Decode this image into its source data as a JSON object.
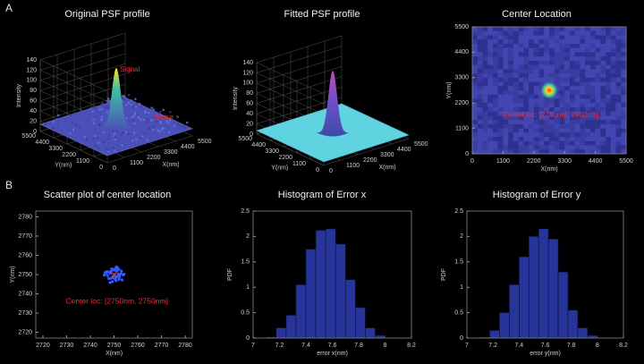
{
  "panel_labels": [
    "A",
    "B"
  ],
  "chart_data": [
    {
      "type": "surface3d",
      "title": "Original PSF profile",
      "xlabel": "X(nm)",
      "ylabel": "Y(nm)",
      "zlabel": "Intensity",
      "xlim": [
        0,
        5500
      ],
      "ylim": [
        0,
        5500
      ],
      "zlim": [
        0,
        140
      ],
      "xticks": [
        0,
        1100,
        2200,
        3300,
        4400,
        5500
      ],
      "yticks": [
        0,
        1100,
        2200,
        3300,
        4400,
        5500
      ],
      "zticks": [
        0,
        20,
        40,
        60,
        80,
        100,
        120,
        140
      ],
      "color": "#4b50b8",
      "annotations": [
        "Signal",
        "Noise"
      ],
      "annotation_color": "#e8303a"
    },
    {
      "type": "surface3d",
      "title": "Fitted PSF profile",
      "xlabel": "X(nm)",
      "ylabel": "Y(nm)",
      "zlabel": "Intensity",
      "xlim": [
        0,
        5500
      ],
      "ylim": [
        0,
        5500
      ],
      "zlim": [
        0,
        140
      ],
      "xticks": [
        0,
        1100,
        2200,
        3300,
        4400,
        5500
      ],
      "yticks": [
        0,
        1100,
        2200,
        3300,
        4400,
        5500
      ],
      "zticks": [
        0,
        20,
        40,
        60,
        80,
        100,
        120,
        140
      ],
      "color": "#5fd3e0"
    },
    {
      "type": "heatmap",
      "title": "Center Location",
      "xlabel": "X(nm)",
      "ylabel": "Y(nm)",
      "xlim": [
        0,
        5500
      ],
      "ylim": [
        0,
        5500
      ],
      "xticks": [
        0,
        1100,
        2200,
        3300,
        4400,
        5500
      ],
      "yticks": [
        0,
        1100,
        2200,
        3300,
        4400,
        5500
      ],
      "center": [
        2750,
        2750
      ],
      "color": "#36389a",
      "annotations": [
        "Center loc: [2750nm, 2750nm]"
      ],
      "annotation_color": "#e8303a"
    },
    {
      "type": "scatter",
      "title": "Scatter plot of center location",
      "xlabel": "X(nm)",
      "ylabel": "Y(nm)",
      "xlim": [
        2717,
        2783
      ],
      "ylim": [
        2717,
        2783
      ],
      "xticks": [
        2720,
        2730,
        2740,
        2750,
        2760,
        2770,
        2780
      ],
      "yticks": [
        2720,
        2730,
        2740,
        2750,
        2760,
        2770,
        2780
      ],
      "x": [
        2748.5,
        2751.2,
        2749.8,
        2752.6,
        2747.3,
        2750.4,
        2753.1,
        2746.9,
        2749.1,
        2751.9,
        2750.9,
        2748.0,
        2752.0,
        2749.5,
        2750.2,
        2747.8,
        2751.5,
        2753.8,
        2746.2,
        2750.7,
        2749.3,
        2752.9,
        2748.7,
        2751.0,
        2750.0,
        2747.1,
        2753.4,
        2749.0,
        2751.7,
        2748.3,
        2750.5,
        2752.3,
        2746.6,
        2749.6,
        2751.3,
        2754.2,
        2745.9,
        2750.8,
        2748.9,
        2752.1
      ],
      "y": [
        2750.6,
        2748.9,
        2752.3,
        2750.1,
        2749.4,
        2747.6,
        2751.8,
        2750.9,
        2753.0,
        2749.2,
        2746.8,
        2751.3,
        2752.7,
        2748.4,
        2750.0,
        2747.9,
        2753.5,
        2749.8,
        2751.1,
        2752.2,
        2746.3,
        2750.5,
        2748.1,
        2754.0,
        2749.6,
        2751.6,
        2747.2,
        2752.9,
        2750.3,
        2745.8,
        2753.2,
        2748.7,
        2750.8,
        2749.0,
        2751.9,
        2750.2,
        2749.7,
        2748.5,
        2752.0,
        2747.5
      ],
      "color": "#2f5bff",
      "center": [
        2750,
        2750
      ],
      "annotations": [
        "Center loc: [2750nm, 2750nm]"
      ],
      "annotation_color": "#e8303a"
    },
    {
      "type": "histogram",
      "title": "Histogram of Error x",
      "xlabel": "error x(nm)",
      "ylabel": "PDF",
      "xlim": [
        7,
        8.2
      ],
      "ylim": [
        0,
        2.5
      ],
      "xticks": [
        7,
        7.2,
        7.4,
        7.6,
        7.8,
        8,
        8.2
      ],
      "yticks": [
        0,
        0.5,
        1,
        1.5,
        2,
        2.5
      ],
      "bins": [
        7.1,
        7.175,
        7.25,
        7.325,
        7.4,
        7.475,
        7.55,
        7.625,
        7.7,
        7.775,
        7.85,
        7.925,
        8.0
      ],
      "values": [
        0.02,
        0.2,
        0.45,
        1.05,
        1.75,
        2.12,
        2.15,
        1.85,
        1.15,
        0.6,
        0.2,
        0.05
      ],
      "color": "#27349a"
    },
    {
      "type": "histogram",
      "title": "Histogram of Error y",
      "xlabel": "error y(nm)",
      "ylabel": "PDF",
      "xlim": [
        7,
        8.2
      ],
      "ylim": [
        0,
        2.5
      ],
      "xticks": [
        7,
        7.2,
        7.4,
        7.6,
        7.8,
        8,
        8.2
      ],
      "yticks": [
        0,
        0.5,
        1,
        1.5,
        2,
        2.5
      ],
      "bins": [
        7.1,
        7.175,
        7.25,
        7.325,
        7.4,
        7.475,
        7.55,
        7.625,
        7.7,
        7.775,
        7.85,
        7.925,
        8.0
      ],
      "values": [
        0.02,
        0.15,
        0.5,
        1.05,
        1.6,
        2.0,
        2.15,
        1.95,
        1.3,
        0.55,
        0.2,
        0.05
      ],
      "color": "#27349a"
    }
  ]
}
